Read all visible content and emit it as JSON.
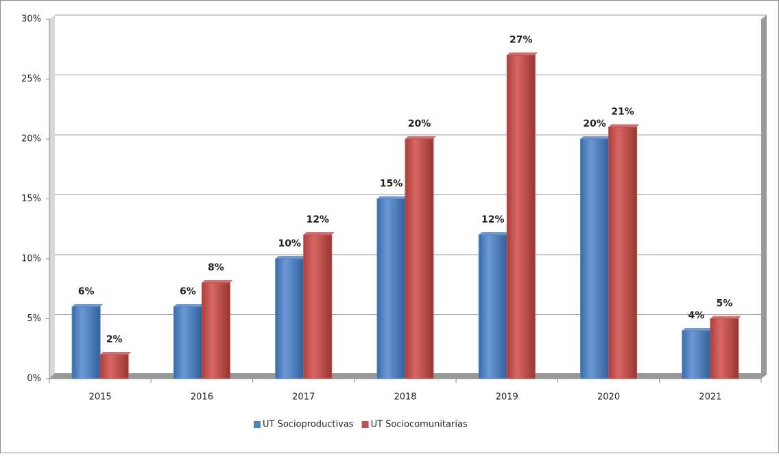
{
  "chart_data": {
    "type": "bar",
    "categories": [
      "2015",
      "2016",
      "2017",
      "2018",
      "2019",
      "2020",
      "2021"
    ],
    "series": [
      {
        "name": "UT Socioproductivas",
        "color": "#4f81bd",
        "values": [
          6,
          6,
          10,
          15,
          12,
          20,
          4
        ],
        "value_labels": [
          "6%",
          "6%",
          "10%",
          "15%",
          "12%",
          "20%",
          "4%"
        ]
      },
      {
        "name": "UT Sociocomunitarias",
        "color": "#c0504d",
        "values": [
          2,
          8,
          12,
          20,
          27,
          21,
          5
        ],
        "value_labels": [
          "2%",
          "8%",
          "12%",
          "20%",
          "27%",
          "21%",
          "5%"
        ]
      }
    ],
    "ylim": [
      0,
      30
    ],
    "yticks": [
      {
        "value": 0,
        "label": "0%"
      },
      {
        "value": 5,
        "label": "5%"
      },
      {
        "value": 10,
        "label": "10%"
      },
      {
        "value": 15,
        "label": "15%"
      },
      {
        "value": 20,
        "label": "20%"
      },
      {
        "value": 25,
        "label": "25%"
      },
      {
        "value": 30,
        "label": "30%"
      }
    ],
    "grid": true,
    "legend": "bottom"
  }
}
